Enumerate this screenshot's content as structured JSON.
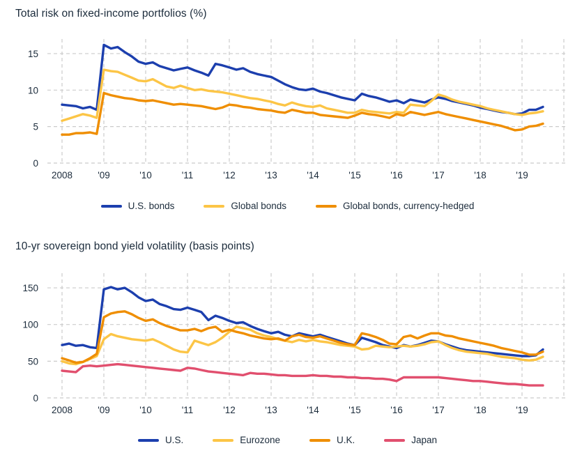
{
  "styles": {
    "background": "#ffffff",
    "text_color": "#1b2b3b",
    "grid_color": "#cbcbcb"
  },
  "chart_data": [
    {
      "type": "line",
      "title": "Total risk on fixed-income portfolios (%)",
      "xlabel": "",
      "ylabel": "",
      "grid": true,
      "legend_position": "bottom",
      "y_ticks": [
        0,
        5,
        10,
        15
      ],
      "ylim": [
        0,
        17
      ],
      "x_range": [
        2007.65,
        2020.1
      ],
      "grid_x_values": [
        2008,
        2009,
        2010,
        2011,
        2012,
        2013,
        2014,
        2015,
        2016,
        2017,
        2018,
        2019,
        2020
      ],
      "x_tick_values": [
        2008,
        2009,
        2010,
        2011,
        2012,
        2013,
        2014,
        2015,
        2016,
        2017,
        2018,
        2019
      ],
      "x_tick_labels": [
        "2008",
        "'09",
        "'10",
        "'11",
        "'12",
        "'13",
        "'14",
        "'15",
        "'16",
        "'17",
        "'18",
        "'19"
      ],
      "x": [
        2008,
        2008.17,
        2008.33,
        2008.5,
        2008.67,
        2008.83,
        2009,
        2009.17,
        2009.33,
        2009.5,
        2009.67,
        2009.83,
        2010,
        2010.17,
        2010.33,
        2010.5,
        2010.67,
        2010.83,
        2011,
        2011.17,
        2011.33,
        2011.5,
        2011.67,
        2011.83,
        2012,
        2012.17,
        2012.33,
        2012.5,
        2012.67,
        2012.83,
        2013,
        2013.17,
        2013.33,
        2013.5,
        2013.67,
        2013.83,
        2014,
        2014.17,
        2014.33,
        2014.5,
        2014.67,
        2014.83,
        2015,
        2015.17,
        2015.33,
        2015.5,
        2015.67,
        2015.83,
        2016,
        2016.17,
        2016.33,
        2016.5,
        2016.67,
        2016.83,
        2017,
        2017.17,
        2017.33,
        2017.5,
        2017.67,
        2017.83,
        2018,
        2018.17,
        2018.33,
        2018.5,
        2018.67,
        2018.83,
        2019,
        2019.17,
        2019.33,
        2019.5
      ],
      "series": [
        {
          "name": "U.S. bonds",
          "color": "#1c3fae",
          "values": [
            8.0,
            7.9,
            7.8,
            7.5,
            7.7,
            7.3,
            16.2,
            15.7,
            15.9,
            15.2,
            14.6,
            13.9,
            13.6,
            13.8,
            13.3,
            13.0,
            12.7,
            12.9,
            13.1,
            12.7,
            12.4,
            12.0,
            13.6,
            13.4,
            13.1,
            12.8,
            13.0,
            12.5,
            12.2,
            12.0,
            11.8,
            11.3,
            10.8,
            10.4,
            10.1,
            10.0,
            10.2,
            9.8,
            9.6,
            9.3,
            9.0,
            8.8,
            8.6,
            9.5,
            9.2,
            9.0,
            8.7,
            8.4,
            8.6,
            8.2,
            8.7,
            8.5,
            8.3,
            8.7,
            9.0,
            8.8,
            8.5,
            8.3,
            8.1,
            7.9,
            7.6,
            7.4,
            7.2,
            7.0,
            6.9,
            6.7,
            6.8,
            7.3,
            7.3,
            7.7
          ]
        },
        {
          "name": "Global bonds",
          "color": "#fcc546",
          "values": [
            5.8,
            6.1,
            6.4,
            6.7,
            6.5,
            6.2,
            12.8,
            12.6,
            12.5,
            12.1,
            11.7,
            11.3,
            11.2,
            11.5,
            11.0,
            10.5,
            10.3,
            10.6,
            10.3,
            10.0,
            10.1,
            9.9,
            9.8,
            9.7,
            9.5,
            9.3,
            9.1,
            8.9,
            8.8,
            8.6,
            8.4,
            8.1,
            7.9,
            8.3,
            8.0,
            7.8,
            7.7,
            7.9,
            7.5,
            7.3,
            7.1,
            6.9,
            6.9,
            7.3,
            7.1,
            7.0,
            6.9,
            6.8,
            7.0,
            6.9,
            8.0,
            7.9,
            7.8,
            8.5,
            9.4,
            9.1,
            8.7,
            8.4,
            8.2,
            8.0,
            7.8,
            7.5,
            7.3,
            7.1,
            6.9,
            6.7,
            6.6,
            6.8,
            6.9,
            7.1
          ]
        },
        {
          "name": "Global bonds, currency-hedged",
          "color": "#ef8e00",
          "values": [
            3.9,
            3.9,
            4.1,
            4.1,
            4.2,
            4.0,
            9.6,
            9.3,
            9.1,
            8.9,
            8.8,
            8.6,
            8.5,
            8.6,
            8.4,
            8.2,
            8.0,
            8.1,
            8.0,
            7.9,
            7.8,
            7.6,
            7.4,
            7.6,
            8.0,
            7.9,
            7.7,
            7.6,
            7.4,
            7.3,
            7.2,
            7.0,
            6.9,
            7.3,
            7.1,
            6.9,
            6.9,
            6.6,
            6.5,
            6.4,
            6.3,
            6.2,
            6.5,
            6.9,
            6.7,
            6.6,
            6.4,
            6.2,
            6.7,
            6.5,
            7.0,
            6.8,
            6.6,
            6.8,
            7.0,
            6.7,
            6.5,
            6.3,
            6.1,
            5.9,
            5.7,
            5.5,
            5.3,
            5.1,
            4.8,
            4.5,
            4.6,
            5.0,
            5.1,
            5.4
          ]
        }
      ]
    },
    {
      "type": "line",
      "title": "10-yr sovereign bond yield volatility (basis points)",
      "xlabel": "",
      "ylabel": "",
      "grid": true,
      "legend_position": "bottom",
      "y_ticks": [
        0,
        50,
        100,
        150
      ],
      "ylim": [
        0,
        170
      ],
      "x_range": [
        2007.65,
        2020.1
      ],
      "grid_x_values": [
        2008,
        2009,
        2010,
        2011,
        2012,
        2013,
        2014,
        2015,
        2016,
        2017,
        2018,
        2019,
        2020
      ],
      "x_tick_values": [
        2008,
        2009,
        2010,
        2011,
        2012,
        2013,
        2014,
        2015,
        2016,
        2017,
        2018,
        2019
      ],
      "x_tick_labels": [
        "2008",
        "'09",
        "'10",
        "'11",
        "'12",
        "'13",
        "'14",
        "'15",
        "'16",
        "'17",
        "'18",
        "'19"
      ],
      "x": [
        2008,
        2008.17,
        2008.33,
        2008.5,
        2008.67,
        2008.83,
        2009,
        2009.17,
        2009.33,
        2009.5,
        2009.67,
        2009.83,
        2010,
        2010.17,
        2010.33,
        2010.5,
        2010.67,
        2010.83,
        2011,
        2011.17,
        2011.33,
        2011.5,
        2011.67,
        2011.83,
        2012,
        2012.17,
        2012.33,
        2012.5,
        2012.67,
        2012.83,
        2013,
        2013.17,
        2013.33,
        2013.5,
        2013.67,
        2013.83,
        2014,
        2014.17,
        2014.33,
        2014.5,
        2014.67,
        2014.83,
        2015,
        2015.17,
        2015.33,
        2015.5,
        2015.67,
        2015.83,
        2016,
        2016.17,
        2016.33,
        2016.5,
        2016.67,
        2016.83,
        2017,
        2017.17,
        2017.33,
        2017.5,
        2017.67,
        2017.83,
        2018,
        2018.17,
        2018.33,
        2018.5,
        2018.67,
        2018.83,
        2019,
        2019.17,
        2019.33,
        2019.5
      ],
      "series": [
        {
          "name": "U.S.",
          "color": "#1c3fae",
          "values": [
            72,
            74,
            71,
            72,
            69,
            68,
            148,
            151,
            148,
            150,
            144,
            137,
            132,
            134,
            128,
            125,
            121,
            120,
            123,
            120,
            117,
            106,
            112,
            109,
            105,
            102,
            103,
            98,
            94,
            91,
            88,
            90,
            86,
            84,
            88,
            86,
            84,
            86,
            83,
            80,
            77,
            74,
            72,
            82,
            79,
            76,
            72,
            70,
            68,
            72,
            70,
            72,
            75,
            78,
            77,
            73,
            70,
            67,
            65,
            64,
            63,
            62,
            61,
            60,
            59,
            58,
            57,
            57,
            58,
            66
          ]
        },
        {
          "name": "Eurozone",
          "color": "#fcc546",
          "values": [
            50,
            47,
            46,
            49,
            53,
            57,
            80,
            87,
            84,
            82,
            80,
            79,
            78,
            80,
            76,
            71,
            66,
            63,
            62,
            78,
            75,
            72,
            76,
            82,
            90,
            97,
            95,
            93,
            88,
            85,
            83,
            80,
            78,
            76,
            79,
            77,
            79,
            77,
            76,
            74,
            72,
            71,
            70,
            66,
            67,
            71,
            70,
            69,
            70,
            71,
            70,
            71,
            73,
            76,
            77,
            72,
            68,
            65,
            63,
            62,
            61,
            60,
            58,
            56,
            55,
            54,
            52,
            51,
            52,
            56
          ]
        },
        {
          "name": "U.K.",
          "color": "#ef8e00",
          "values": [
            54,
            51,
            48,
            49,
            54,
            60,
            110,
            115,
            117,
            118,
            114,
            109,
            105,
            107,
            102,
            98,
            95,
            92,
            92,
            94,
            91,
            95,
            97,
            90,
            93,
            90,
            88,
            85,
            83,
            81,
            80,
            81,
            78,
            84,
            86,
            83,
            82,
            84,
            81,
            78,
            75,
            73,
            72,
            88,
            86,
            83,
            79,
            74,
            73,
            83,
            85,
            81,
            85,
            88,
            88,
            85,
            84,
            81,
            79,
            77,
            75,
            73,
            71,
            68,
            66,
            64,
            62,
            59,
            59,
            63
          ]
        },
        {
          "name": "Japan",
          "color": "#e14f6e",
          "values": [
            37,
            36,
            35,
            43,
            44,
            43,
            44,
            45,
            46,
            45,
            44,
            43,
            42,
            41,
            40,
            39,
            38,
            37,
            41,
            40,
            38,
            36,
            35,
            34,
            33,
            32,
            31,
            34,
            33,
            33,
            32,
            31,
            31,
            30,
            30,
            30,
            31,
            30,
            30,
            29,
            29,
            28,
            28,
            27,
            27,
            26,
            26,
            25,
            23,
            28,
            28,
            28,
            28,
            28,
            28,
            27,
            26,
            25,
            24,
            23,
            23,
            22,
            21,
            20,
            19,
            19,
            18,
            17,
            17,
            17
          ]
        }
      ]
    }
  ]
}
